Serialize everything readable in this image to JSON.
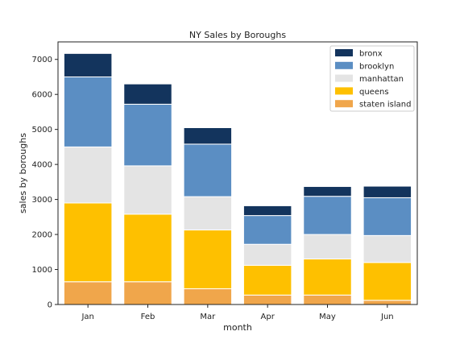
{
  "chart_data": {
    "type": "bar",
    "stacked": true,
    "title": "NY Sales by Boroughs",
    "xlabel": "month",
    "ylabel": "sales by boroughs",
    "categories": [
      "Jan",
      "Feb",
      "Mar",
      "Apr",
      "May",
      "Jun"
    ],
    "ylim": [
      0,
      7500
    ],
    "yticks": [
      0,
      1000,
      2000,
      3000,
      4000,
      5000,
      6000,
      7000
    ],
    "grid": false,
    "legend_position": "top-right",
    "series": [
      {
        "name": "staten island",
        "color": "#f0a64b",
        "values": [
          650,
          650,
          450,
          270,
          270,
          120
        ]
      },
      {
        "name": "queens",
        "color": "#fec000",
        "values": [
          2250,
          1930,
          1680,
          850,
          1030,
          1080
        ]
      },
      {
        "name": "manhattan",
        "color": "#e4e4e4",
        "values": [
          1600,
          1380,
          950,
          600,
          700,
          770
        ]
      },
      {
        "name": "brooklyn",
        "color": "#5b8ec3",
        "values": [
          2000,
          1760,
          1500,
          820,
          1090,
          1080
        ]
      },
      {
        "name": "bronx",
        "color": "#13345d",
        "values": [
          670,
          580,
          470,
          280,
          280,
          330
        ]
      }
    ],
    "legend_order": [
      "bronx",
      "brooklyn",
      "manhattan",
      "queens",
      "staten island"
    ]
  }
}
